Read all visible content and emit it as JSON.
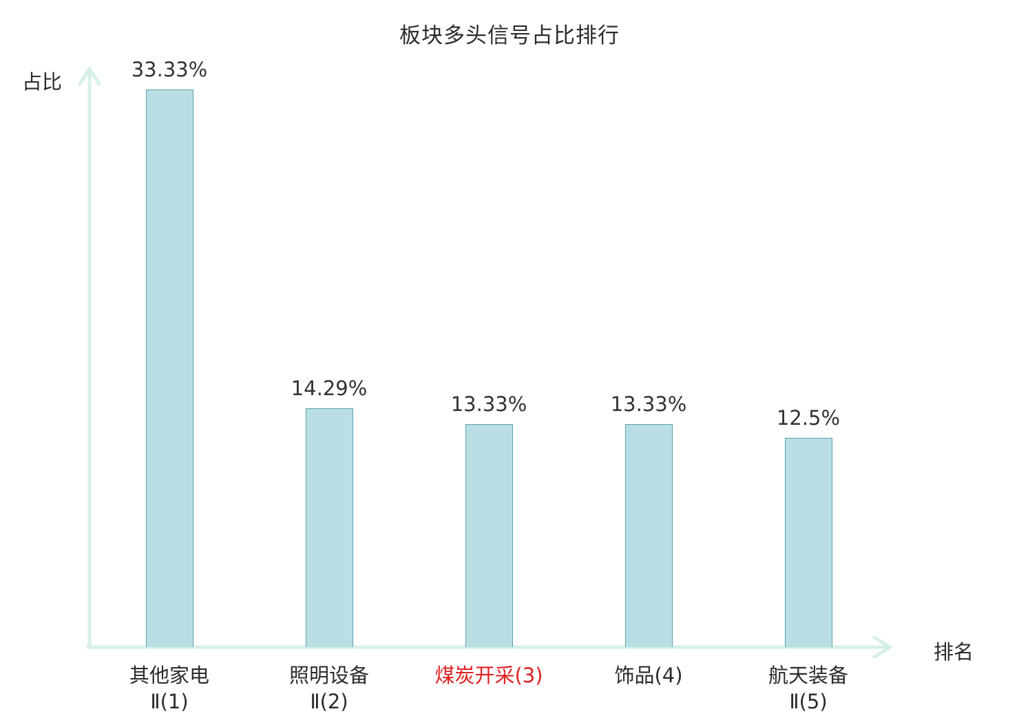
{
  "chart_data": {
    "type": "bar",
    "title": "板块多头信号占比排行",
    "xlabel": "排名",
    "ylabel": "占比",
    "categories": [
      "其他家电Ⅱ(1)",
      "照明设备Ⅱ(2)",
      "煤炭开采(3)",
      "饰品(4)",
      "航天装备Ⅱ(5)"
    ],
    "category_lines": [
      [
        "其他家电",
        "Ⅱ(1)"
      ],
      [
        "照明设备",
        "Ⅱ(2)"
      ],
      [
        "煤炭开采(3)"
      ],
      [
        "饰品(4)"
      ],
      [
        "航天装备",
        "Ⅱ(5)"
      ]
    ],
    "values": [
      33.33,
      14.29,
      13.33,
      13.33,
      12.5
    ],
    "value_labels": [
      "33.33%",
      "14.29%",
      "13.33%",
      "13.33%",
      "12.5%"
    ],
    "ylim": [
      0,
      33.33
    ],
    "grid": false,
    "legend": false,
    "highlight_index": 2,
    "highlight_color": "#e02020",
    "bar_fill": "#b9dfe4",
    "bar_border": "#5ba3ae",
    "axis_color": "#d6f0e9",
    "text_color": "#2b2b2b"
  }
}
